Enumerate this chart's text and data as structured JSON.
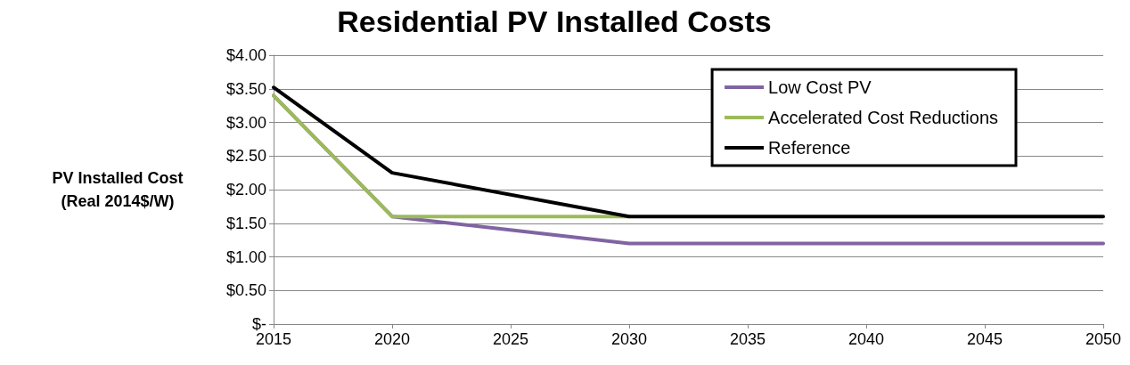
{
  "chart_data": {
    "type": "line",
    "title": "Residential PV Installed Costs",
    "ylabel": "PV Installed Cost\n(Real 2014$/W)",
    "series": [
      {
        "name": "Low Cost PV",
        "color": "#8064a2",
        "x": [
          2015,
          2020,
          2030,
          2050
        ],
        "values": [
          3.4,
          1.6,
          1.2,
          1.2
        ]
      },
      {
        "name": "Accelerated Cost Reductions",
        "color": "#9bbb59",
        "x": [
          2015,
          2020,
          2030
        ],
        "values": [
          3.4,
          1.6,
          1.6
        ]
      },
      {
        "name": "Reference",
        "color": "#000000",
        "x": [
          2015,
          2020,
          2030,
          2050
        ],
        "values": [
          3.52,
          2.25,
          1.6,
          1.6
        ]
      }
    ],
    "xlim": [
      2015,
      2050
    ],
    "xticks": [
      2015,
      2020,
      2025,
      2030,
      2035,
      2040,
      2045,
      2050
    ],
    "ylim": [
      0,
      4
    ],
    "yticks": [
      {
        "value": 0,
        "label": "$-"
      },
      {
        "value": 0.5,
        "label": "$0.50"
      },
      {
        "value": 1,
        "label": "$1.00"
      },
      {
        "value": 1.5,
        "label": "$1.50"
      },
      {
        "value": 2,
        "label": "$2.00"
      },
      {
        "value": 2.5,
        "label": "$2.50"
      },
      {
        "value": 3,
        "label": "$3.00"
      },
      {
        "value": 3.5,
        "label": "$3.50"
      },
      {
        "value": 4,
        "label": "$4.00"
      }
    ],
    "grid": "y",
    "legend": "top right",
    "marker": "none",
    "line_style": "solid"
  }
}
